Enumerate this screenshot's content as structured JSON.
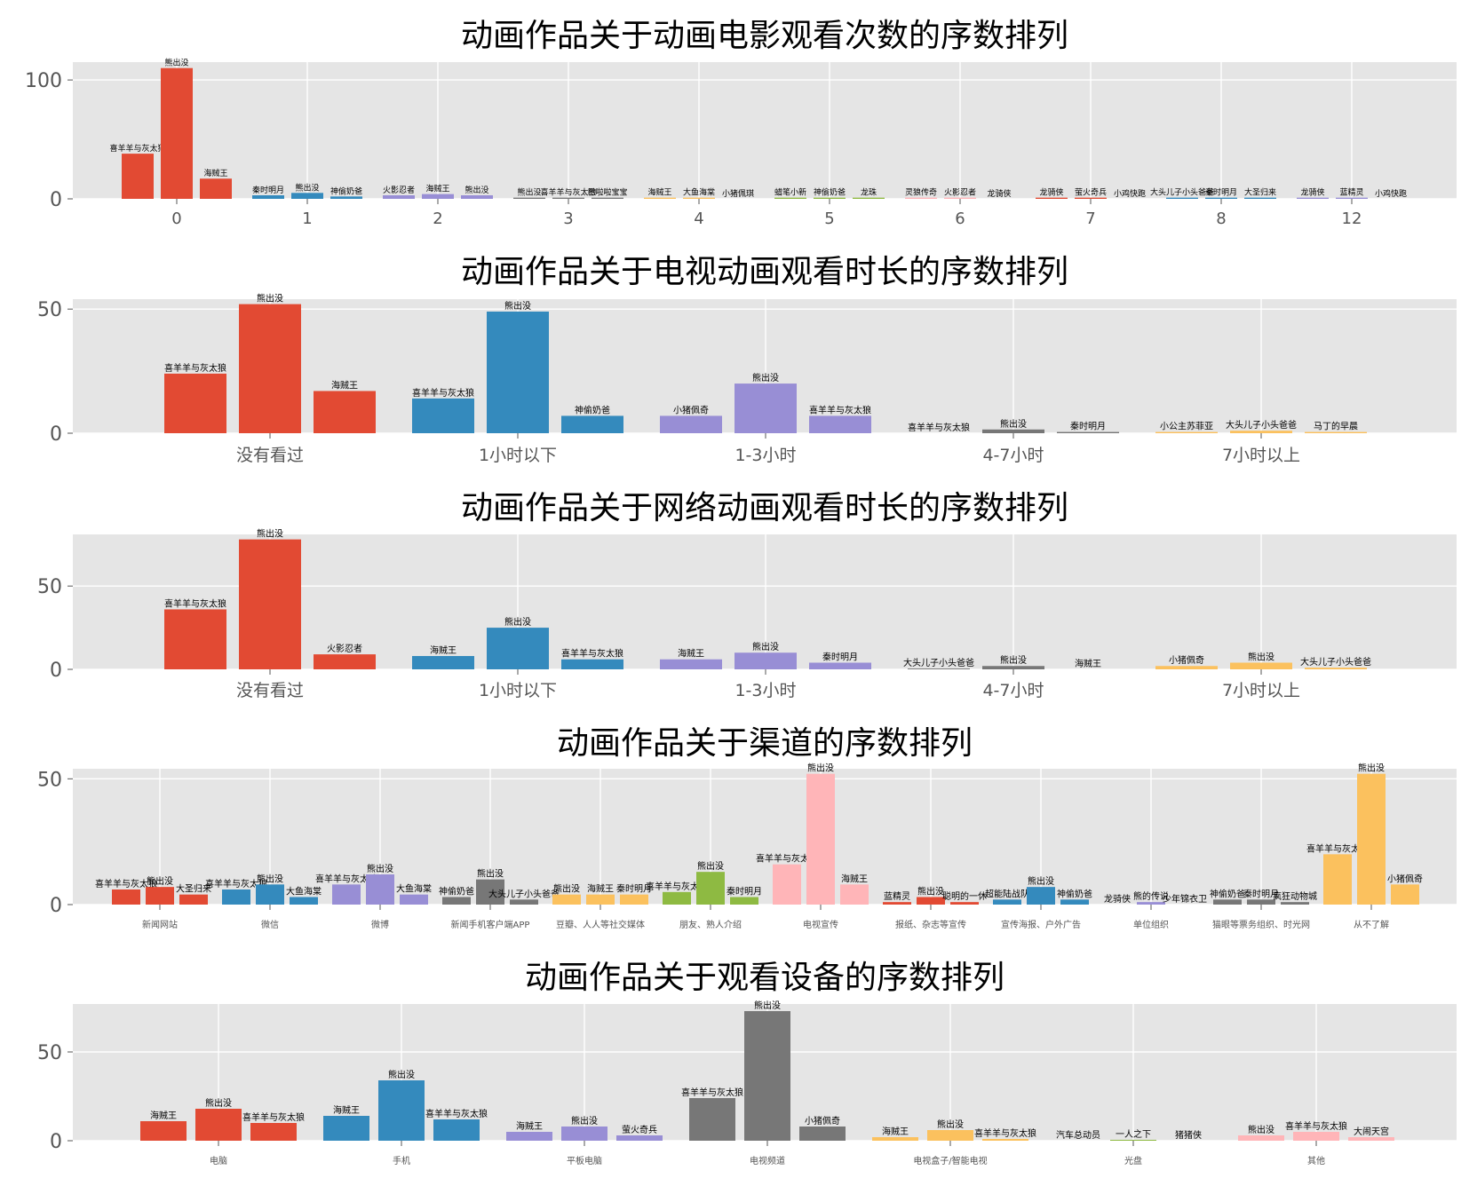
{
  "colors": {
    "background": "#ffffff",
    "plot_background": "#e5e5e5",
    "grid": "#ffffff",
    "tick_text": "#555555",
    "title_text": "#000000",
    "palette": [
      "#e24a33",
      "#348abd",
      "#988ed5",
      "#777777",
      "#fbc15e",
      "#8eba42",
      "#ffb5b8"
    ]
  },
  "chart_data": [
    {
      "type": "bar",
      "title": "动画作品关于动画电影观看次数的序数排列",
      "ylim": [
        0,
        115
      ],
      "yticks": [
        0,
        100
      ],
      "grid": true,
      "categories": [
        "0",
        "1",
        "2",
        "3",
        "4",
        "5",
        "6",
        "7",
        "8",
        "12"
      ],
      "groups": [
        {
          "category": "0",
          "bars": [
            {
              "label": "喜羊羊与灰太狼",
              "value": 38
            },
            {
              "label": "熊出没",
              "value": 110
            },
            {
              "label": "海贼王",
              "value": 17
            }
          ]
        },
        {
          "category": "1",
          "bars": [
            {
              "label": "秦时明月",
              "value": 3
            },
            {
              "label": "熊出没",
              "value": 5
            },
            {
              "label": "神偷奶爸",
              "value": 2
            }
          ]
        },
        {
          "category": "2",
          "bars": [
            {
              "label": "火影忍者",
              "value": 3
            },
            {
              "label": "海贼王",
              "value": 4
            },
            {
              "label": "熊出没",
              "value": 3
            }
          ]
        },
        {
          "category": "3",
          "bars": [
            {
              "label": "熊出没",
              "value": 1
            },
            {
              "label": "喜羊羊与灰太狼",
              "value": 1
            },
            {
              "label": "巴啦啦宝宝",
              "value": 1
            }
          ]
        },
        {
          "category": "4",
          "bars": [
            {
              "label": "海贼王",
              "value": 1
            },
            {
              "label": "大鱼海棠",
              "value": 1
            },
            {
              "label": "小猪佩琪",
              "value": 0
            }
          ]
        },
        {
          "category": "5",
          "bars": [
            {
              "label": "蜡笔小新",
              "value": 1
            },
            {
              "label": "神偷奶爸",
              "value": 1
            },
            {
              "label": "龙珠",
              "value": 1
            }
          ]
        },
        {
          "category": "6",
          "bars": [
            {
              "label": "灵狼传奇",
              "value": 1
            },
            {
              "label": "火影忍者",
              "value": 1
            },
            {
              "label": "龙骑侠",
              "value": 0
            }
          ]
        },
        {
          "category": "7",
          "bars": [
            {
              "label": "龙骑侠",
              "value": 1
            },
            {
              "label": "萤火奇兵",
              "value": 1
            },
            {
              "label": "小鸡快跑",
              "value": 0
            }
          ]
        },
        {
          "category": "8",
          "bars": [
            {
              "label": "大头儿子小头爸爸",
              "value": 1
            },
            {
              "label": "秦时明月",
              "value": 1
            },
            {
              "label": "大圣归来",
              "value": 1
            }
          ]
        },
        {
          "category": "12",
          "bars": [
            {
              "label": "龙骑侠",
              "value": 1
            },
            {
              "label": "蓝精灵",
              "value": 1
            },
            {
              "label": "小鸡快跑",
              "value": 0
            }
          ]
        }
      ]
    },
    {
      "type": "bar",
      "title": "动画作品关于电视动画观看时长的序数排列",
      "ylim": [
        0,
        54
      ],
      "yticks": [
        0,
        50
      ],
      "grid": true,
      "categories": [
        "没有看过",
        "1小时以下",
        "1-3小时",
        "4-7小时",
        "7小时以上"
      ],
      "groups": [
        {
          "category": "没有看过",
          "bars": [
            {
              "label": "喜羊羊与灰太狼",
              "value": 24
            },
            {
              "label": "熊出没",
              "value": 52
            },
            {
              "label": "海贼王",
              "value": 17
            }
          ]
        },
        {
          "category": "1小时以下",
          "bars": [
            {
              "label": "喜羊羊与灰太狼",
              "value": 14
            },
            {
              "label": "熊出没",
              "value": 49
            },
            {
              "label": "神偷奶爸",
              "value": 7
            }
          ]
        },
        {
          "category": "1-3小时",
          "bars": [
            {
              "label": "小猪佩奇",
              "value": 7
            },
            {
              "label": "熊出没",
              "value": 20
            },
            {
              "label": "喜羊羊与灰太狼",
              "value": 7
            }
          ]
        },
        {
          "category": "4-7小时",
          "bars": [
            {
              "label": "喜羊羊与灰太狼",
              "value": 0
            },
            {
              "label": "熊出没",
              "value": 1.5
            },
            {
              "label": "秦时明月",
              "value": 0.5
            }
          ]
        },
        {
          "category": "7小时以上",
          "bars": [
            {
              "label": "小公主苏菲亚",
              "value": 0.5
            },
            {
              "label": "大头儿子小头爸爸",
              "value": 1
            },
            {
              "label": "马丁的早晨",
              "value": 0.5
            }
          ]
        }
      ]
    },
    {
      "type": "bar",
      "title": "动画作品关于网络动画观看时长的序数排列",
      "ylim": [
        0,
        81
      ],
      "yticks": [
        0,
        50
      ],
      "grid": true,
      "categories": [
        "没有看过",
        "1小时以下",
        "1-3小时",
        "4-7小时",
        "7小时以上"
      ],
      "groups": [
        {
          "category": "没有看过",
          "bars": [
            {
              "label": "喜羊羊与灰太狼",
              "value": 36
            },
            {
              "label": "熊出没",
              "value": 78
            },
            {
              "label": "火影忍者",
              "value": 9
            }
          ]
        },
        {
          "category": "1小时以下",
          "bars": [
            {
              "label": "海贼王",
              "value": 8
            },
            {
              "label": "熊出没",
              "value": 25
            },
            {
              "label": "喜羊羊与灰太狼",
              "value": 6
            }
          ]
        },
        {
          "category": "1-3小时",
          "bars": [
            {
              "label": "海贼王",
              "value": 6
            },
            {
              "label": "熊出没",
              "value": 10
            },
            {
              "label": "秦时明月",
              "value": 4
            }
          ]
        },
        {
          "category": "4-7小时",
          "bars": [
            {
              "label": "大头儿子小头爸爸",
              "value": 0.5
            },
            {
              "label": "熊出没",
              "value": 2
            },
            {
              "label": "海贼王",
              "value": 0
            }
          ]
        },
        {
          "category": "7小时以上",
          "bars": [
            {
              "label": "小猪佩奇",
              "value": 2
            },
            {
              "label": "熊出没",
              "value": 4
            },
            {
              "label": "大头儿子小头爸爸",
              "value": 1
            }
          ]
        }
      ]
    },
    {
      "type": "bar",
      "title": "动画作品关于渠道的序数排列",
      "ylim": [
        0,
        54
      ],
      "yticks": [
        0,
        50
      ],
      "grid": true,
      "categories": [
        "新闻网站",
        "微信",
        "微博",
        "新闻手机客户端APP",
        "豆瓣、人人等社交媒体",
        "朋友、熟人介绍",
        "电视宣传",
        "报纸、杂志等宣传",
        "宣传海报、户外广告",
        "单位组织",
        "猫眼等票务组织、时光网",
        "从不了解"
      ],
      "groups": [
        {
          "category": "新闻网站",
          "bars": [
            {
              "label": "喜羊羊与灰太狼",
              "value": 6
            },
            {
              "label": "熊出没",
              "value": 7
            },
            {
              "label": "大圣归来",
              "value": 4
            }
          ]
        },
        {
          "category": "微信",
          "bars": [
            {
              "label": "喜羊羊与灰太狼",
              "value": 6
            },
            {
              "label": "熊出没",
              "value": 8
            },
            {
              "label": "大鱼海棠",
              "value": 3
            }
          ]
        },
        {
          "category": "微博",
          "bars": [
            {
              "label": "喜羊羊与灰太狼",
              "value": 8
            },
            {
              "label": "熊出没",
              "value": 12
            },
            {
              "label": "大鱼海棠",
              "value": 4
            }
          ]
        },
        {
          "category": "新闻手机客户端APP",
          "bars": [
            {
              "label": "神偷奶爸",
              "value": 3
            },
            {
              "label": "熊出没",
              "value": 10
            },
            {
              "label": "大头儿子小头爸爸",
              "value": 2
            }
          ]
        },
        {
          "category": "豆瓣、人人等社交媒体",
          "bars": [
            {
              "label": "熊出没",
              "value": 4
            },
            {
              "label": "海贼王",
              "value": 4
            },
            {
              "label": "秦时明月",
              "value": 4
            }
          ]
        },
        {
          "category": "朋友、熟人介绍",
          "bars": [
            {
              "label": "喜羊羊与灰太狼",
              "value": 5
            },
            {
              "label": "熊出没",
              "value": 13
            },
            {
              "label": "秦时明月",
              "value": 3
            }
          ]
        },
        {
          "category": "电视宣传",
          "bars": [
            {
              "label": "喜羊羊与灰太狼",
              "value": 16
            },
            {
              "label": "熊出没",
              "value": 52
            },
            {
              "label": "海贼王",
              "value": 8
            }
          ]
        },
        {
          "category": "报纸、杂志等宣传",
          "bars": [
            {
              "label": "蓝精灵",
              "value": 1
            },
            {
              "label": "熊出没",
              "value": 3
            },
            {
              "label": "聪明的一休",
              "value": 1
            }
          ]
        },
        {
          "category": "宣传海报、户外广告",
          "bars": [
            {
              "label": "超能陆战队",
              "value": 2
            },
            {
              "label": "熊出没",
              "value": 7
            },
            {
              "label": "神偷奶爸",
              "value": 2
            }
          ]
        },
        {
          "category": "单位组织",
          "bars": [
            {
              "label": "龙骑侠",
              "value": 0
            },
            {
              "label": "熊的传说",
              "value": 1
            },
            {
              "label": "少年锦衣卫",
              "value": 0
            }
          ]
        },
        {
          "category": "猫眼等票务组织、时光网",
          "bars": [
            {
              "label": "神偷奶爸",
              "value": 2
            },
            {
              "label": "秦时明月",
              "value": 2
            },
            {
              "label": "疯狂动物城",
              "value": 1
            }
          ]
        },
        {
          "category": "从不了解",
          "bars": [
            {
              "label": "喜羊羊与灰太狼",
              "value": 20
            },
            {
              "label": "熊出没",
              "value": 52
            },
            {
              "label": "小猪佩奇",
              "value": 8
            }
          ]
        }
      ]
    },
    {
      "type": "bar",
      "title": "动画作品关于观看设备的序数排列",
      "ylim": [
        0,
        77
      ],
      "yticks": [
        0,
        50
      ],
      "grid": true,
      "categories": [
        "电脑",
        "手机",
        "平板电脑",
        "电视频道",
        "电视盒子/智能电视",
        "光盘",
        "其他"
      ],
      "groups": [
        {
          "category": "电脑",
          "bars": [
            {
              "label": "海贼王",
              "value": 11
            },
            {
              "label": "熊出没",
              "value": 18
            },
            {
              "label": "喜羊羊与灰太狼",
              "value": 10
            }
          ]
        },
        {
          "category": "手机",
          "bars": [
            {
              "label": "海贼王",
              "value": 14
            },
            {
              "label": "熊出没",
              "value": 34
            },
            {
              "label": "喜羊羊与灰太狼",
              "value": 12
            }
          ]
        },
        {
          "category": "平板电脑",
          "bars": [
            {
              "label": "海贼王",
              "value": 5
            },
            {
              "label": "熊出没",
              "value": 8
            },
            {
              "label": "萤火奇兵",
              "value": 3
            }
          ]
        },
        {
          "category": "电视频道",
          "bars": [
            {
              "label": "喜羊羊与灰太狼",
              "value": 24
            },
            {
              "label": "熊出没",
              "value": 73
            },
            {
              "label": "小猪佩奇",
              "value": 8
            }
          ]
        },
        {
          "category": "电视盒子/智能电视",
          "bars": [
            {
              "label": "海贼王",
              "value": 2
            },
            {
              "label": "熊出没",
              "value": 6
            },
            {
              "label": "喜羊羊与灰太狼",
              "value": 1
            }
          ]
        },
        {
          "category": "光盘",
          "bars": [
            {
              "label": "汽车总动员",
              "value": 0
            },
            {
              "label": "一人之下",
              "value": 0.5
            },
            {
              "label": "猪猪侠",
              "value": 0
            }
          ]
        },
        {
          "category": "其他",
          "bars": [
            {
              "label": "熊出没",
              "value": 3
            },
            {
              "label": "喜羊羊与灰太狼",
              "value": 5
            },
            {
              "label": "大闹天宫",
              "value": 2
            }
          ]
        }
      ]
    }
  ]
}
